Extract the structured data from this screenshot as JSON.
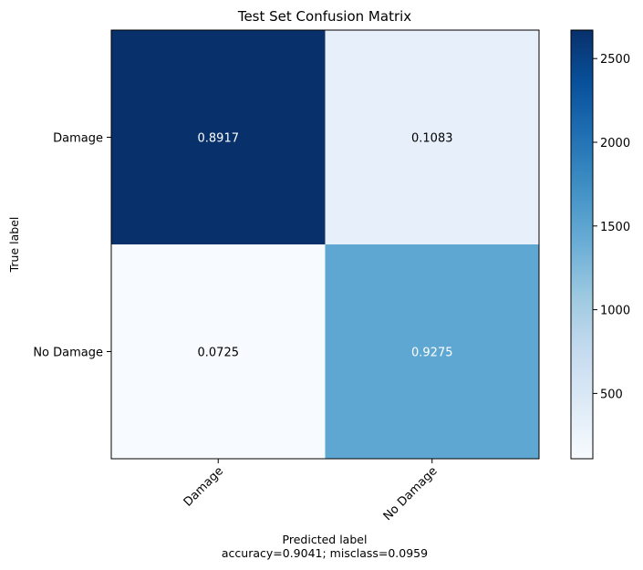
{
  "chart_data": {
    "type": "heatmap",
    "title": "Test Set Confusion Matrix",
    "ylabel": "True label",
    "xlabel": "Predicted label",
    "xlabel_subtitle": "accuracy=0.9041; misclass=0.0959",
    "row_labels": [
      "Damage",
      "No Damage"
    ],
    "col_labels": [
      "Damage",
      "No Damage"
    ],
    "cell_values": [
      [
        0.8917,
        0.1083
      ],
      [
        0.0725,
        0.9275
      ]
    ],
    "cell_colors": [
      [
        "#08306b",
        "#e7f0fa"
      ],
      [
        "#f7fbff",
        "#5ea7d2"
      ]
    ],
    "cell_text_colors": [
      [
        "#ffffff",
        "#000000"
      ],
      [
        "#000000",
        "#ffffff"
      ]
    ],
    "colormap": "Blues",
    "colorbar": {
      "range": [
        110,
        2670
      ],
      "ticks": [
        500,
        1000,
        1500,
        2000,
        2500
      ],
      "tick_labels": [
        "500",
        "1000",
        "1500",
        "2000",
        "2500"
      ]
    }
  }
}
